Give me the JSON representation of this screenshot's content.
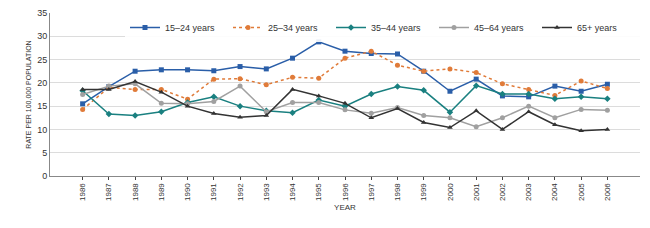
{
  "chart_data": {
    "type": "line",
    "x_label": "YEAR",
    "y_label": "RATE PER 100,000 POPULATION",
    "categories": [
      "1986",
      "1987",
      "1988",
      "1989",
      "1990",
      "1991",
      "1992",
      "1993",
      "1994",
      "1995",
      "1996",
      "1997",
      "1998",
      "1999",
      "2000",
      "2001",
      "2002",
      "2003",
      "2004",
      "2005",
      "2006"
    ],
    "series": [
      {
        "name": "15–24 years",
        "color": "#2a5ea8",
        "marker": "square",
        "line_style": "solid",
        "values": [
          15.5,
          19.2,
          22.5,
          22.8,
          22.8,
          22.6,
          23.5,
          23.0,
          25.3,
          28.8,
          26.8,
          26.3,
          26.2,
          22.5,
          18.2,
          20.8,
          17.2,
          17.0,
          19.3,
          18.2,
          19.7
        ]
      },
      {
        "name": "25–34 years",
        "color": "#e07b39",
        "marker": "circle",
        "line_style": "dot",
        "values": [
          14.3,
          19.0,
          18.6,
          18.6,
          16.5,
          20.8,
          20.9,
          19.6,
          21.2,
          21.0,
          25.3,
          26.8,
          23.8,
          22.5,
          23.0,
          22.2,
          19.8,
          18.6,
          17.3,
          20.4,
          18.8
        ]
      },
      {
        "name": "35–44 years",
        "color": "#1a8080",
        "marker": "diamond",
        "line_style": "solid",
        "values": [
          18.3,
          13.3,
          13.0,
          13.8,
          15.8,
          17.0,
          15.0,
          14.0,
          13.6,
          16.3,
          15.0,
          17.6,
          19.2,
          18.4,
          13.7,
          19.4,
          17.6,
          17.6,
          16.6,
          17.0,
          16.6
        ]
      },
      {
        "name": "45–64 years",
        "color": "#a0a0a0",
        "marker": "circle",
        "line_style": "solid",
        "values": [
          17.5,
          19.3,
          19.8,
          15.6,
          15.5,
          16.0,
          19.3,
          13.8,
          15.8,
          15.8,
          14.2,
          13.5,
          14.7,
          13.0,
          12.5,
          10.6,
          12.5,
          15.0,
          12.5,
          14.3,
          14.1
        ]
      },
      {
        "name": "65+ years",
        "color": "#333333",
        "marker": "triangle-up",
        "line_style": "solid",
        "values": [
          18.6,
          18.6,
          20.3,
          18.0,
          15.0,
          13.4,
          12.6,
          13.0,
          18.6,
          17.2,
          15.6,
          12.5,
          14.5,
          11.5,
          10.4,
          14.0,
          10.0,
          13.8,
          11.0,
          9.7,
          10.0
        ]
      }
    ],
    "ylim": [
      0,
      35
    ],
    "yticks": [
      0,
      5,
      10,
      15,
      20,
      25,
      30,
      35
    ],
    "grid": true,
    "legend": "top right"
  }
}
